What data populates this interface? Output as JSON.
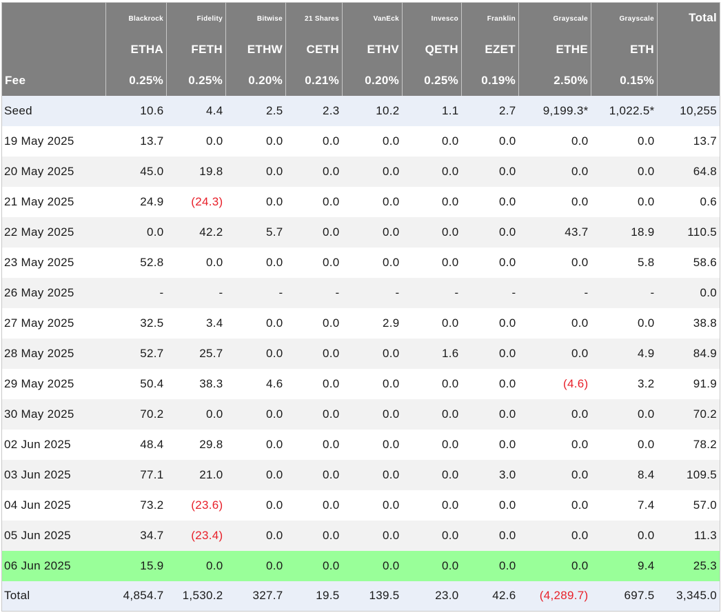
{
  "issuers": [
    "Blackrock",
    "Fidelity",
    "Bitwise",
    "21 Shares",
    "VanEck",
    "Invesco",
    "Franklin",
    "Grayscale",
    "Grayscale"
  ],
  "total_header": "Total",
  "tickers": [
    "ETHA",
    "FETH",
    "ETHW",
    "CETH",
    "ETHV",
    "QETH",
    "EZET",
    "ETHE",
    "ETH"
  ],
  "fee_label": "Fee",
  "fees": [
    "0.25%",
    "0.25%",
    "0.20%",
    "0.21%",
    "0.20%",
    "0.25%",
    "0.19%",
    "2.50%",
    "0.15%"
  ],
  "rows": [
    {
      "label": "Seed",
      "style": "seed",
      "values": [
        "10.6",
        "4.4",
        "2.5",
        "2.3",
        "10.2",
        "1.1",
        "2.7",
        "9,199.3*",
        "1,022.5*"
      ],
      "total": "10,255"
    },
    {
      "label": "19 May 2025",
      "style": "white",
      "values": [
        "13.7",
        "0.0",
        "0.0",
        "0.0",
        "0.0",
        "0.0",
        "0.0",
        "0.0",
        "0.0"
      ],
      "total": "13.7"
    },
    {
      "label": "20 May 2025",
      "style": "grey",
      "values": [
        "45.0",
        "19.8",
        "0.0",
        "0.0",
        "0.0",
        "0.0",
        "0.0",
        "0.0",
        "0.0"
      ],
      "total": "64.8"
    },
    {
      "label": "21 May 2025",
      "style": "white",
      "values": [
        "24.9",
        "(24.3)",
        "0.0",
        "0.0",
        "0.0",
        "0.0",
        "0.0",
        "0.0",
        "0.0"
      ],
      "total": "0.6"
    },
    {
      "label": "22 May 2025",
      "style": "grey",
      "values": [
        "0.0",
        "42.2",
        "5.7",
        "0.0",
        "0.0",
        "0.0",
        "0.0",
        "43.7",
        "18.9"
      ],
      "total": "110.5"
    },
    {
      "label": "23 May 2025",
      "style": "white",
      "values": [
        "52.8",
        "0.0",
        "0.0",
        "0.0",
        "0.0",
        "0.0",
        "0.0",
        "0.0",
        "5.8"
      ],
      "total": "58.6"
    },
    {
      "label": "26 May 2025",
      "style": "grey",
      "values": [
        "-",
        "-",
        "-",
        "-",
        "-",
        "-",
        "-",
        "-",
        "-"
      ],
      "total": "0.0"
    },
    {
      "label": "27 May 2025",
      "style": "white",
      "values": [
        "32.5",
        "3.4",
        "0.0",
        "0.0",
        "2.9",
        "0.0",
        "0.0",
        "0.0",
        "0.0"
      ],
      "total": "38.8"
    },
    {
      "label": "28 May 2025",
      "style": "grey",
      "values": [
        "52.7",
        "25.7",
        "0.0",
        "0.0",
        "0.0",
        "1.6",
        "0.0",
        "0.0",
        "4.9"
      ],
      "total": "84.9"
    },
    {
      "label": "29 May 2025",
      "style": "white",
      "values": [
        "50.4",
        "38.3",
        "4.6",
        "0.0",
        "0.0",
        "0.0",
        "0.0",
        "(4.6)",
        "3.2"
      ],
      "total": "91.9"
    },
    {
      "label": "30 May 2025",
      "style": "grey",
      "values": [
        "70.2",
        "0.0",
        "0.0",
        "0.0",
        "0.0",
        "0.0",
        "0.0",
        "0.0",
        "0.0"
      ],
      "total": "70.2"
    },
    {
      "label": "02 Jun 2025",
      "style": "white",
      "values": [
        "48.4",
        "29.8",
        "0.0",
        "0.0",
        "0.0",
        "0.0",
        "0.0",
        "0.0",
        "0.0"
      ],
      "total": "78.2"
    },
    {
      "label": "03 Jun 2025",
      "style": "grey",
      "values": [
        "77.1",
        "21.0",
        "0.0",
        "0.0",
        "0.0",
        "0.0",
        "3.0",
        "0.0",
        "8.4"
      ],
      "total": "109.5"
    },
    {
      "label": "04 Jun 2025",
      "style": "white",
      "values": [
        "73.2",
        "(23.6)",
        "0.0",
        "0.0",
        "0.0",
        "0.0",
        "0.0",
        "0.0",
        "7.4"
      ],
      "total": "57.0"
    },
    {
      "label": "05 Jun 2025",
      "style": "grey",
      "values": [
        "34.7",
        "(23.4)",
        "0.0",
        "0.0",
        "0.0",
        "0.0",
        "0.0",
        "0.0",
        "0.0"
      ],
      "total": "11.3"
    },
    {
      "label": "06 Jun 2025",
      "style": "highlight",
      "values": [
        "15.9",
        "0.0",
        "0.0",
        "0.0",
        "0.0",
        "0.0",
        "0.0",
        "0.0",
        "9.4"
      ],
      "total": "25.3"
    },
    {
      "label": "Total",
      "style": "total",
      "values": [
        "4,854.7",
        "1,530.2",
        "327.7",
        "19.5",
        "139.5",
        "23.0",
        "42.6",
        "(4,289.7)",
        "697.5"
      ],
      "total": "3,345.0"
    }
  ],
  "colors": {
    "header_bg": "#808080",
    "negative": "#e8202a",
    "highlight_row": "#99ff99",
    "seed_total_bg": "#eaeff8",
    "alt_row_bg": "#f2f2f2"
  }
}
